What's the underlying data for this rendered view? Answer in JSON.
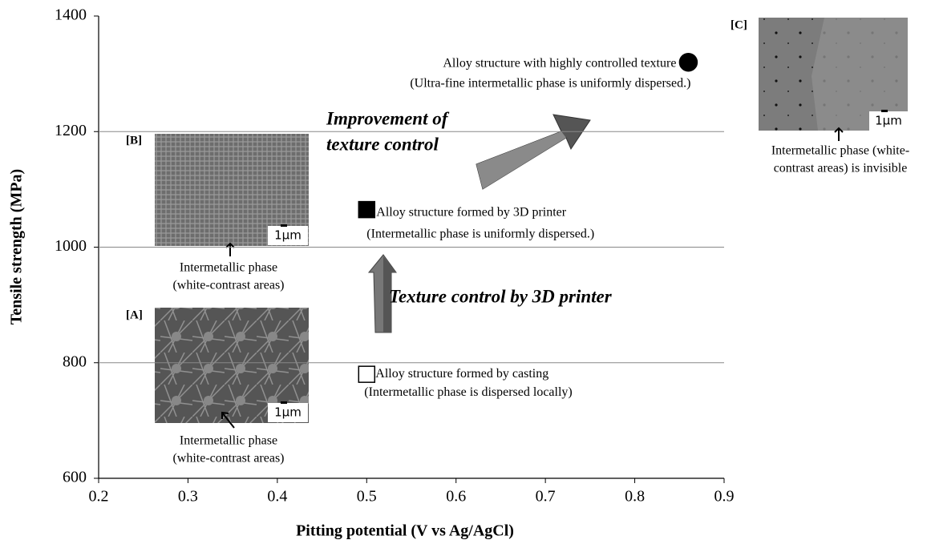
{
  "chart_data": {
    "type": "scatter",
    "x_label": "Pitting potential (V vs Ag/AgCl)",
    "y_label": "Tensile strength (MPa)",
    "xlim": [
      0.2,
      0.9
    ],
    "xticks": [
      0.2,
      0.3,
      0.4,
      0.5,
      0.6,
      0.7,
      0.8,
      0.9
    ],
    "ylim": [
      600,
      1400
    ],
    "yticks": [
      600,
      800,
      1000,
      1200,
      1400
    ],
    "grid": true,
    "series": [
      {
        "name": "Alloy structure formed by casting",
        "note": "(Intermetallic phase is dispersed locally)",
        "marker": "square",
        "filled": false,
        "color": "#000000",
        "x": [
          0.5
        ],
        "values": [
          780
        ]
      },
      {
        "name": "Alloy structure formed by 3D printer",
        "note": "(Intermetallic phase is uniformly dispersed.)",
        "marker": "square",
        "filled": true,
        "color": "#000000",
        "x": [
          0.5
        ],
        "values": [
          1065
        ]
      },
      {
        "name": "Alloy structure with highly controlled texture",
        "note": "(Ultra-fine intermetallic phase is uniformly dispersed.)",
        "marker": "circle",
        "filled": true,
        "color": "#000000",
        "x": [
          0.86
        ],
        "values": [
          1320
        ]
      }
    ],
    "annotations": [
      "Improvement of",
      "texture control",
      "Texture control by 3D printer"
    ],
    "insets": [
      {
        "tag": "[A]",
        "scale": "1μm",
        "caption": [
          "Intermetallic phase",
          "(white-contrast areas)"
        ]
      },
      {
        "tag": "[B]",
        "scale": "1μm",
        "caption": [
          "Intermetallic phase",
          "(white-contrast areas)"
        ]
      },
      {
        "tag": "[C]",
        "scale": "1μm",
        "caption": [
          "Intermetallic phase (white-",
          "contrast areas) is invisible"
        ]
      }
    ]
  }
}
